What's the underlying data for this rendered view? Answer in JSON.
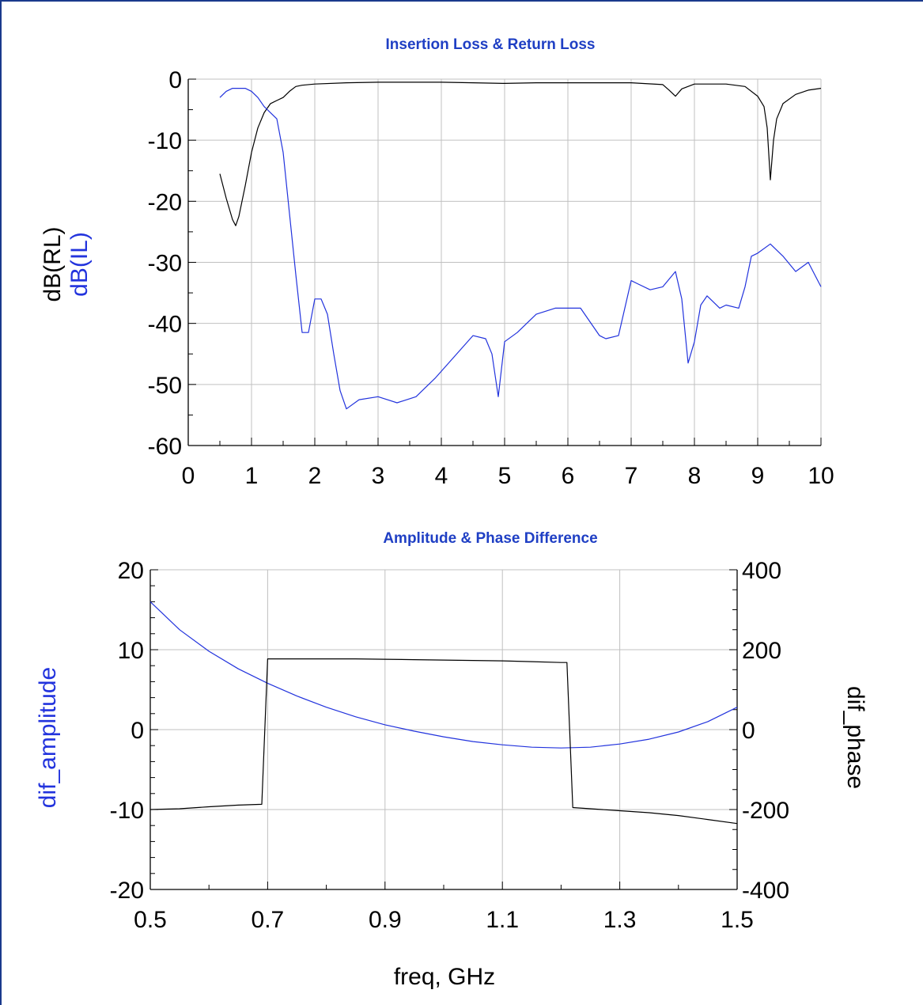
{
  "colors": {
    "border": "#1a3a8c",
    "title": "#1f3fc4",
    "grid": "#c0c0c0",
    "axis": "#000000",
    "series_black": "#000000",
    "series_blue": "#2233dd"
  },
  "chart_data": [
    {
      "type": "line",
      "title": "Insertion Loss & Return Loss",
      "xlim": [
        0,
        10
      ],
      "ylim": [
        -60,
        0
      ],
      "xticks": [
        "0",
        "1",
        "2",
        "3",
        "4",
        "5",
        "6",
        "7",
        "8",
        "9",
        "10"
      ],
      "yticks": [
        "0",
        "-10",
        "-20",
        "-30",
        "-40",
        "-50",
        "-60"
      ],
      "ylabel_black": "dB(RL)",
      "ylabel_blue": "dB(IL)",
      "xlabel": "",
      "grid": true,
      "series": [
        {
          "name": "dB(RL)",
          "color": "black",
          "x": [
            0.5,
            0.6,
            0.7,
            0.75,
            0.8,
            0.9,
            1.0,
            1.1,
            1.2,
            1.3,
            1.4,
            1.5,
            1.6,
            1.7,
            1.8,
            2.0,
            2.5,
            3.0,
            3.5,
            4.0,
            4.5,
            5.0,
            5.5,
            6.0,
            6.5,
            7.0,
            7.5,
            7.6,
            7.7,
            7.8,
            8.0,
            8.5,
            8.8,
            9.0,
            9.1,
            9.15,
            9.2,
            9.25,
            9.3,
            9.4,
            9.6,
            9.8,
            10.0
          ],
          "y": [
            -15.5,
            -19.5,
            -23.0,
            -24.0,
            -22.5,
            -17.5,
            -12.0,
            -8.0,
            -5.5,
            -4.0,
            -3.5,
            -3.0,
            -2.0,
            -1.2,
            -1.0,
            -0.8,
            -0.6,
            -0.5,
            -0.5,
            -0.5,
            -0.6,
            -0.7,
            -0.6,
            -0.6,
            -0.6,
            -0.6,
            -0.9,
            -1.8,
            -2.8,
            -1.6,
            -0.8,
            -0.8,
            -1.2,
            -2.8,
            -4.5,
            -8.0,
            -16.5,
            -10.0,
            -6.5,
            -4.0,
            -2.5,
            -1.8,
            -1.5
          ]
        },
        {
          "name": "dB(IL)",
          "color": "blue",
          "x": [
            0.5,
            0.6,
            0.7,
            0.8,
            0.9,
            1.0,
            1.1,
            1.2,
            1.3,
            1.4,
            1.5,
            1.6,
            1.7,
            1.8,
            1.9,
            2.0,
            2.1,
            2.2,
            2.3,
            2.4,
            2.5,
            2.7,
            3.0,
            3.3,
            3.6,
            3.9,
            4.2,
            4.5,
            4.7,
            4.8,
            4.9,
            5.0,
            5.2,
            5.5,
            5.8,
            6.2,
            6.5,
            6.6,
            6.8,
            7.0,
            7.1,
            7.3,
            7.5,
            7.7,
            7.8,
            7.9,
            8.0,
            8.1,
            8.2,
            8.4,
            8.5,
            8.7,
            8.8,
            8.9,
            9.0,
            9.2,
            9.4,
            9.6,
            9.8,
            10.0
          ],
          "y": [
            -3.0,
            -2.0,
            -1.5,
            -1.5,
            -1.5,
            -2.0,
            -3.0,
            -4.5,
            -5.5,
            -6.5,
            -12.0,
            -22.0,
            -32.0,
            -41.5,
            -41.5,
            -36.0,
            -36.0,
            -38.5,
            -45.0,
            -51.0,
            -54.0,
            -52.5,
            -52.0,
            -53.0,
            -52.0,
            -49.0,
            -45.5,
            -42.0,
            -42.5,
            -45.0,
            -52.0,
            -43.0,
            -41.5,
            -38.5,
            -37.5,
            -37.5,
            -42.0,
            -42.5,
            -42.0,
            -33.0,
            -33.5,
            -34.5,
            -34.0,
            -31.5,
            -36.0,
            -46.5,
            -43.0,
            -37.0,
            -35.5,
            -37.5,
            -37.0,
            -37.5,
            -34.0,
            -29.0,
            -28.5,
            -27.0,
            -29.0,
            -31.5,
            -30.0,
            -34.0
          ]
        }
      ]
    },
    {
      "type": "line",
      "title": "Amplitude & Phase Difference",
      "xlim": [
        0.5,
        1.5
      ],
      "ylim_left": [
        -20,
        20
      ],
      "ylim_right": [
        -400,
        400
      ],
      "xticks": [
        "0.5",
        "0.7",
        "0.9",
        "1.1",
        "1.3",
        "1.5"
      ],
      "yticks_left": [
        "20",
        "10",
        "0",
        "-10",
        "-20"
      ],
      "yticks_right": [
        "400",
        "200",
        "0",
        "-200",
        "-400"
      ],
      "ylabel_left": "dif_amplitude",
      "ylabel_right": "dif_phase",
      "xlabel": "freq, GHz",
      "grid": true,
      "series": [
        {
          "name": "dif_amplitude",
          "color": "blue",
          "axis": "left",
          "x": [
            0.5,
            0.55,
            0.6,
            0.65,
            0.7,
            0.75,
            0.8,
            0.85,
            0.9,
            0.95,
            1.0,
            1.05,
            1.1,
            1.15,
            1.2,
            1.25,
            1.3,
            1.35,
            1.4,
            1.45,
            1.5
          ],
          "y": [
            16.0,
            12.5,
            9.8,
            7.6,
            5.8,
            4.2,
            2.8,
            1.6,
            0.6,
            -0.2,
            -0.9,
            -1.5,
            -1.9,
            -2.2,
            -2.3,
            -2.2,
            -1.8,
            -1.2,
            -0.3,
            1.0,
            2.8
          ]
        },
        {
          "name": "dif_phase",
          "color": "black",
          "axis": "right",
          "x": [
            0.5,
            0.55,
            0.6,
            0.65,
            0.69,
            0.7,
            0.75,
            0.8,
            0.85,
            0.9,
            0.95,
            1.0,
            1.05,
            1.1,
            1.15,
            1.2,
            1.21,
            1.22,
            1.25,
            1.3,
            1.35,
            1.4,
            1.45,
            1.5
          ],
          "y": [
            -200,
            -198,
            -193,
            -189,
            -187,
            177,
            177,
            177,
            177,
            176,
            175,
            174,
            173,
            172,
            170,
            168,
            168,
            -195,
            -198,
            -203,
            -208,
            -215,
            -225,
            -235
          ]
        }
      ]
    }
  ]
}
